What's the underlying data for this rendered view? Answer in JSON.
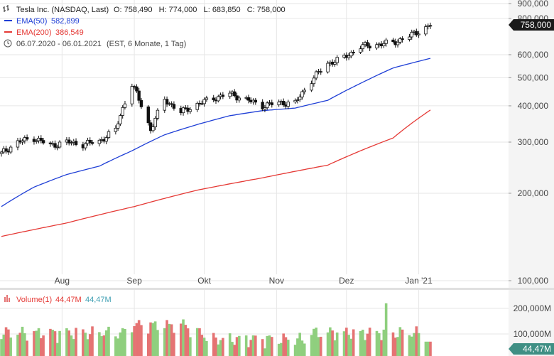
{
  "header": {
    "symbol_line": "Tesla Inc. (NASDAQ, Last)",
    "ohlc": "O: 758,490   H: 774,000   L: 683,850   C: 758,000",
    "ema50_label": "EMA(50)",
    "ema50_value": "582,899",
    "ema200_label": "EMA(200)",
    "ema200_value": "386,549",
    "range_text": "06.07.2020 - 06.01.2021",
    "range_detail": "(EST, 6 Monate, 1 Tag)"
  },
  "price_badge": "758,000",
  "volume": {
    "label": "Volume(1)",
    "value_red": "44,47M",
    "value_blue": "44,47M",
    "badge": "44,47M",
    "ticks": [
      {
        "value": 200,
        "label": "200,000M"
      },
      {
        "value": 100,
        "label": "100,000M"
      }
    ]
  },
  "colors": {
    "up": "#ffffff",
    "down": "#111111",
    "ema50": "#1f3fd6",
    "ema200": "#e53935",
    "vol_up": "#8fcf7e",
    "vol_down": "#e57373",
    "grid": "#e6e6e6",
    "badge": "#1a1a1a",
    "badge_vol": "#3f8f84"
  },
  "chart_data": {
    "type": "candlestick",
    "y_scale": "log",
    "ylim": [
      100,
      900
    ],
    "y_ticks": [
      {
        "value": 900,
        "label": "900,000"
      },
      {
        "value": 800,
        "label": "800,000"
      },
      {
        "value": 600,
        "label": "600,000"
      },
      {
        "value": 500,
        "label": "500,000"
      },
      {
        "value": 400,
        "label": "400,000"
      },
      {
        "value": 300,
        "label": "300,000"
      },
      {
        "value": 200,
        "label": "200,000"
      },
      {
        "value": 100,
        "label": "100,000"
      }
    ],
    "x_ticks": [
      {
        "date": "2020-08-01",
        "label": "Aug"
      },
      {
        "date": "2020-09-01",
        "label": "Sep"
      },
      {
        "date": "2020-10-01",
        "label": "Okt"
      },
      {
        "date": "2020-11-01",
        "label": "Nov"
      },
      {
        "date": "2020-12-01",
        "label": "Dez"
      },
      {
        "date": "2021-01-01",
        "label": "Jan '21"
      }
    ],
    "anchors_close": [
      [
        "2020-07-06",
        274
      ],
      [
        "2020-07-13",
        300
      ],
      [
        "2020-07-20",
        310
      ],
      [
        "2020-07-27",
        292
      ],
      [
        "2020-08-03",
        300
      ],
      [
        "2020-08-10",
        295
      ],
      [
        "2020-08-17",
        302
      ],
      [
        "2020-08-24",
        330
      ],
      [
        "2020-08-31",
        475
      ],
      [
        "2020-09-08",
        330
      ],
      [
        "2020-09-14",
        420
      ],
      [
        "2020-09-21",
        380
      ],
      [
        "2020-09-28",
        405
      ],
      [
        "2020-10-05",
        425
      ],
      [
        "2020-10-12",
        440
      ],
      [
        "2020-10-19",
        420
      ],
      [
        "2020-10-26",
        400
      ],
      [
        "2020-11-02",
        410
      ],
      [
        "2020-11-09",
        408
      ],
      [
        "2020-11-16",
        490
      ],
      [
        "2020-11-23",
        560
      ],
      [
        "2020-11-30",
        585
      ],
      [
        "2020-12-07",
        640
      ],
      [
        "2020-12-14",
        650
      ],
      [
        "2020-12-21",
        660
      ],
      [
        "2020-12-28",
        695
      ],
      [
        "2021-01-06",
        758
      ]
    ],
    "ema50": [
      [
        "2020-07-06",
        180
      ],
      [
        "2020-07-20",
        210
      ],
      [
        "2020-08-03",
        232
      ],
      [
        "2020-08-17",
        248
      ],
      [
        "2020-08-31",
        280
      ],
      [
        "2020-09-14",
        318
      ],
      [
        "2020-09-28",
        345
      ],
      [
        "2020-10-12",
        370
      ],
      [
        "2020-10-26",
        385
      ],
      [
        "2020-11-09",
        393
      ],
      [
        "2020-11-23",
        418
      ],
      [
        "2020-12-07",
        478
      ],
      [
        "2020-12-21",
        540
      ],
      [
        "2021-01-06",
        583
      ]
    ],
    "ema200": [
      [
        "2020-07-06",
        142
      ],
      [
        "2020-08-03",
        158
      ],
      [
        "2020-09-01",
        180
      ],
      [
        "2020-09-28",
        205
      ],
      [
        "2020-10-26",
        226
      ],
      [
        "2020-11-23",
        250
      ],
      [
        "2020-12-21",
        310
      ],
      [
        "2021-01-06",
        387
      ]
    ]
  }
}
